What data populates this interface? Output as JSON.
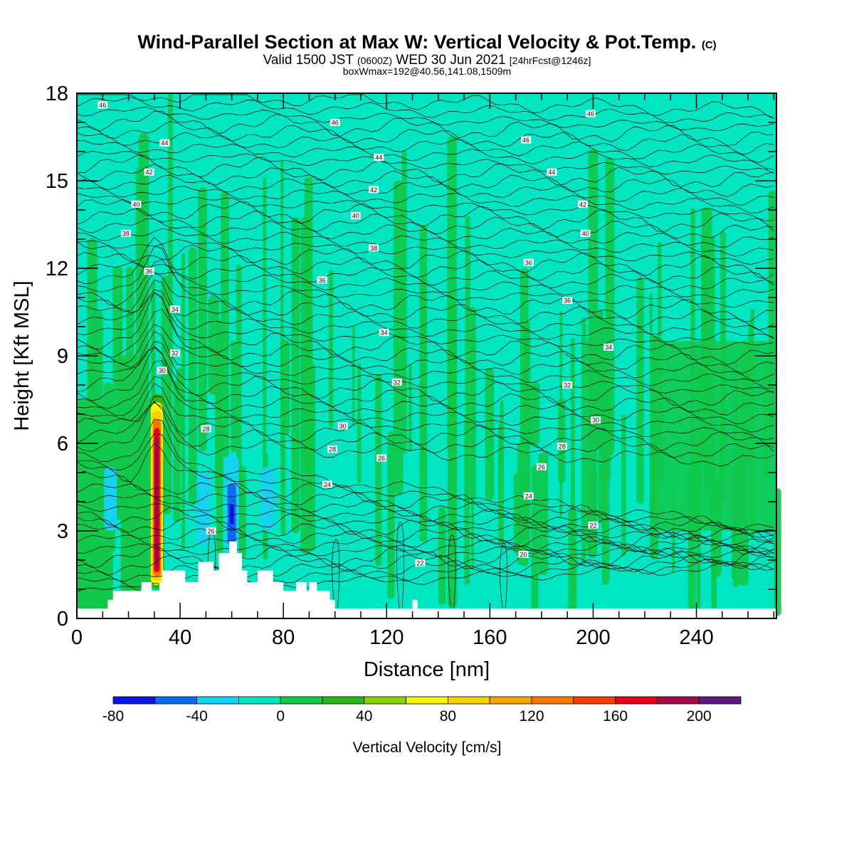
{
  "title": {
    "main": "Wind-Parallel Section at Max W: Vertical Velocity & Pot.Temp.",
    "copyright": "(C)",
    "valid_prefix": "Valid 1500 JST",
    "valid_utc": "(0600Z)",
    "valid_date": "WED 30 Jun 2021",
    "forecast": "[24hrFcst@1246z]",
    "boxinfo": "boxWmax=192@40.56,141.08,1509m"
  },
  "chart_data": {
    "type": "contour",
    "xlabel": "Distance [nm]",
    "ylabel": "Height [Kft MSL]",
    "xlim": [
      0,
      271
    ],
    "ylim": [
      0,
      18
    ],
    "x_ticks": [
      0,
      40,
      80,
      120,
      160,
      200,
      240
    ],
    "y_ticks": [
      0,
      3,
      6,
      9,
      12,
      15,
      18
    ],
    "colorbar": {
      "label": "Vertical Velocity [cm/s]",
      "levels": [
        -80,
        -60,
        -40,
        -20,
        0,
        20,
        40,
        60,
        80,
        100,
        120,
        140,
        160,
        180,
        200,
        220
      ],
      "tick_labels": [
        -80,
        -40,
        0,
        40,
        80,
        120,
        160,
        200
      ],
      "colors": [
        "#0a14e6",
        "#0a6cf0",
        "#14d2f0",
        "#00e6c3",
        "#10c84a",
        "#2db51e",
        "#8cd20a",
        "#f5f50a",
        "#f5d200",
        "#f5a500",
        "#f57800",
        "#f53c00",
        "#e6001e",
        "#a00a46",
        "#64147d"
      ]
    },
    "vertical_velocity_features": [
      {
        "kind": "updraft_max",
        "x_nm": 31,
        "z_kft": [
          1.0,
          7.7
        ],
        "max_cm_s": 192
      },
      {
        "kind": "downdraft",
        "x_nm": 60,
        "z_kft": [
          2.0,
          5.6
        ],
        "min_cm_s": -80
      },
      {
        "kind": "downdraft",
        "x_nm": 74,
        "z_kft": [
          3.0,
          5.2
        ],
        "min_cm_s": -40
      },
      {
        "kind": "downdraft",
        "x_nm": 13,
        "z_kft": [
          3.0,
          5.2
        ],
        "min_cm_s": -40
      },
      {
        "kind": "downdraft",
        "x_nm": 49,
        "z_kft": [
          2.5,
          5.0
        ],
        "min_cm_s": -40
      }
    ],
    "potential_temperature_contours": [
      {
        "label": "22",
        "points": [
          [
            200,
            3.2
          ]
        ]
      },
      {
        "label": "22",
        "points": [
          [
            133,
            1.9
          ]
        ]
      },
      {
        "label": "20",
        "points": [
          [
            173,
            2.2
          ]
        ]
      },
      {
        "label": "24",
        "points": [
          [
            97,
            4.6
          ],
          [
            175,
            4.2
          ]
        ]
      },
      {
        "label": "26",
        "points": [
          [
            52,
            3.0
          ],
          [
            118,
            5.5
          ],
          [
            180,
            5.2
          ]
        ]
      },
      {
        "label": "28",
        "points": [
          [
            50,
            6.5
          ],
          [
            99,
            5.8
          ],
          [
            188,
            5.9
          ]
        ]
      },
      {
        "label": "30",
        "points": [
          [
            33,
            8.5
          ],
          [
            103,
            6.6
          ],
          [
            201,
            6.8
          ]
        ]
      },
      {
        "label": "32",
        "points": [
          [
            38,
            9.1
          ],
          [
            124,
            8.1
          ],
          [
            190,
            8.0
          ]
        ]
      },
      {
        "label": "34",
        "points": [
          [
            38,
            10.6
          ],
          [
            119,
            9.8
          ],
          [
            206,
            9.3
          ]
        ]
      },
      {
        "label": "36",
        "points": [
          [
            28,
            11.9
          ],
          [
            95,
            11.6
          ],
          [
            175,
            12.2
          ],
          [
            190,
            10.9
          ]
        ]
      },
      {
        "label": "38",
        "points": [
          [
            19,
            13.2
          ],
          [
            115,
            12.7
          ]
        ]
      },
      {
        "label": "40",
        "points": [
          [
            23,
            14.2
          ],
          [
            108,
            13.8
          ],
          [
            197,
            13.2
          ]
        ]
      },
      {
        "label": "42",
        "points": [
          [
            28,
            15.3
          ],
          [
            115,
            14.7
          ],
          [
            196,
            14.2
          ]
        ]
      },
      {
        "label": "44",
        "points": [
          [
            34,
            16.3
          ],
          [
            117,
            15.8
          ],
          [
            184,
            15.3
          ]
        ]
      },
      {
        "label": "46",
        "points": [
          [
            10,
            17.6
          ],
          [
            100,
            17.0
          ],
          [
            174,
            16.4
          ],
          [
            199,
            17.3
          ]
        ]
      }
    ],
    "terrain_profile_kft": [
      [
        0,
        0
      ],
      [
        12,
        0
      ],
      [
        12,
        0.3
      ],
      [
        14,
        0.3
      ],
      [
        14,
        0.6
      ],
      [
        25,
        0.6
      ],
      [
        25,
        0.9
      ],
      [
        29,
        0.9
      ],
      [
        29,
        0.6
      ],
      [
        32,
        0.6
      ],
      [
        32,
        0.9
      ],
      [
        33,
        0.9
      ],
      [
        33,
        1.3
      ],
      [
        42,
        1.3
      ],
      [
        42,
        0.9
      ],
      [
        47,
        0.9
      ],
      [
        47,
        1.6
      ],
      [
        53,
        1.6
      ],
      [
        53,
        1.3
      ],
      [
        55,
        1.3
      ],
      [
        55,
        1.9
      ],
      [
        59,
        1.9
      ],
      [
        59,
        2.3
      ],
      [
        62,
        2.3
      ],
      [
        62,
        1.9
      ],
      [
        64,
        1.9
      ],
      [
        64,
        1.3
      ],
      [
        66,
        1.3
      ],
      [
        66,
        0.9
      ],
      [
        70,
        0.9
      ],
      [
        70,
        1.3
      ],
      [
        76,
        1.3
      ],
      [
        76,
        0.9
      ],
      [
        80,
        0.9
      ],
      [
        80,
        0.6
      ],
      [
        85,
        0.6
      ],
      [
        85,
        0.9
      ],
      [
        89,
        0.9
      ],
      [
        89,
        0.6
      ],
      [
        90,
        0.6
      ],
      [
        90,
        0.9
      ],
      [
        93,
        0.9
      ],
      [
        93,
        0.6
      ],
      [
        98,
        0.6
      ],
      [
        98,
        0.3
      ],
      [
        100,
        0.3
      ],
      [
        100,
        0
      ],
      [
        130,
        0
      ],
      [
        130,
        0.3
      ],
      [
        132,
        0.3
      ],
      [
        132,
        0
      ],
      [
        271,
        0
      ]
    ]
  }
}
